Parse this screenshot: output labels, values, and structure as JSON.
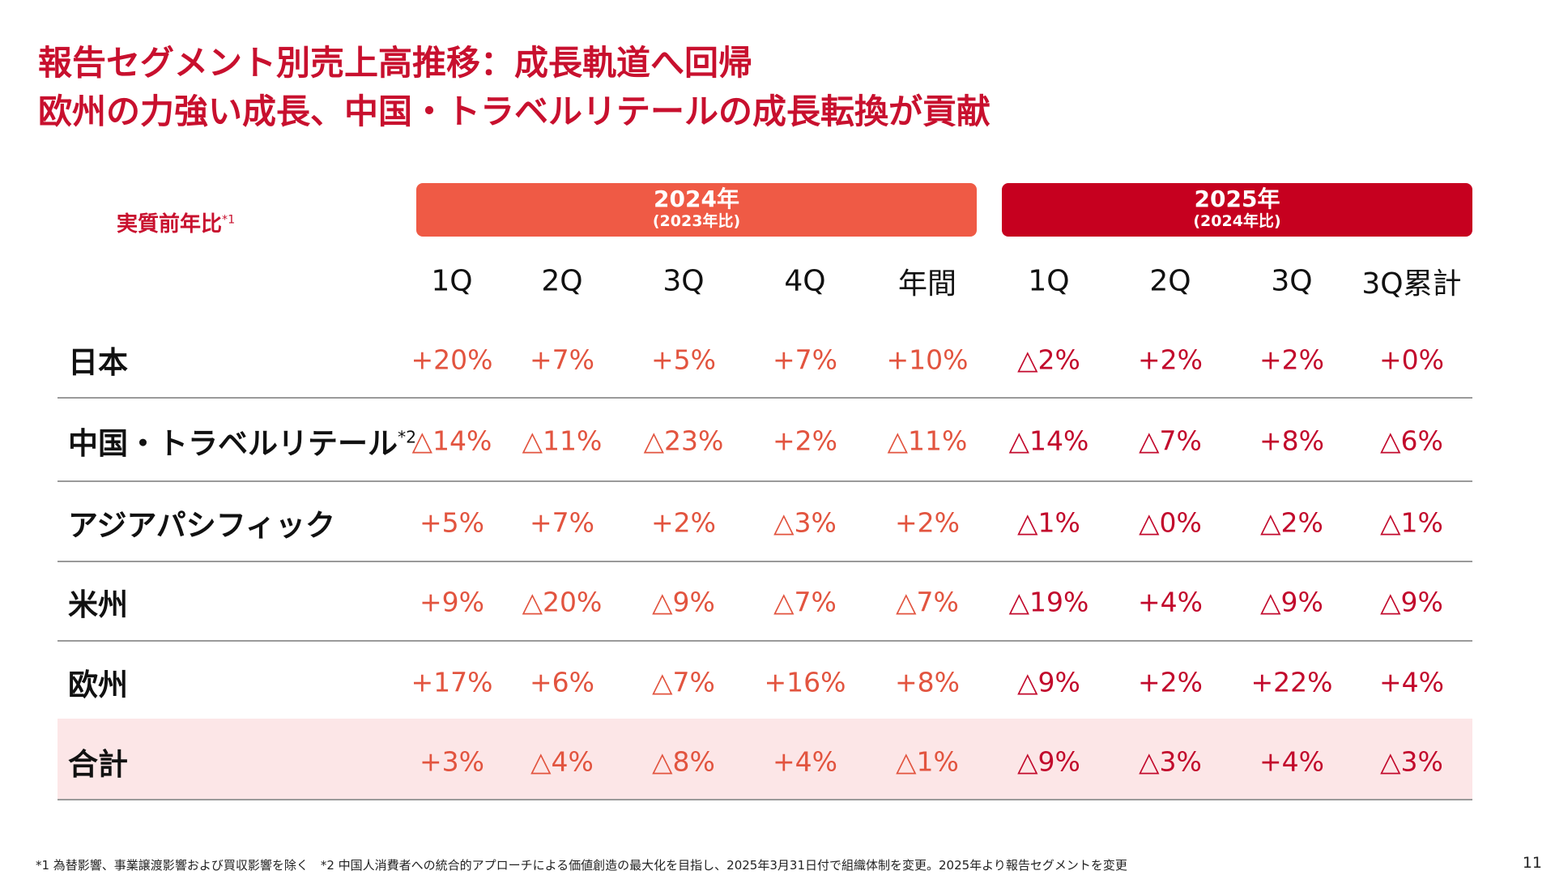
{
  "title": [
    "報告セグメント別売上高推移：成長軌道へ回帰",
    "欧州の力強い成長、中国・トラベルリテールの成長転換が貢献"
  ],
  "table": {
    "corner": {
      "label": "実質前年比",
      "note": "*1"
    },
    "groups": [
      {
        "label": "2024年",
        "sub": "(2023年比)",
        "span": 5,
        "color": "#ef5a45",
        "text_color": "#e2543f"
      },
      {
        "label": "2025年",
        "sub": "(2024年比)",
        "span": 4,
        "color": "#c6001f",
        "text_color": "#c20a2c"
      }
    ],
    "columns": [
      "1Q",
      "2Q",
      "3Q",
      "4Q",
      "年間",
      "1Q",
      "2Q",
      "3Q",
      "3Q累計"
    ],
    "rows": [
      {
        "label": "日本",
        "note": null,
        "cells": [
          "+20%",
          "+7%",
          "+5%",
          "+7%",
          "+10%",
          "△2%",
          "+2%",
          "+2%",
          "+0%"
        ]
      },
      {
        "label": "中国・トラベルリテール",
        "note": "*2",
        "cells": [
          "△14%",
          "△11%",
          "△23%",
          "+2%",
          "△11%",
          "△14%",
          "△7%",
          "+8%",
          "△6%"
        ]
      },
      {
        "label": "アジアパシフィック",
        "note": null,
        "cells": [
          "+5%",
          "+7%",
          "+2%",
          "△3%",
          "+2%",
          "△1%",
          "△0%",
          "△2%",
          "△1%"
        ]
      },
      {
        "label": "米州",
        "note": null,
        "cells": [
          "+9%",
          "△20%",
          "△9%",
          "△7%",
          "△7%",
          "△19%",
          "+4%",
          "△9%",
          "△9%"
        ]
      },
      {
        "label": "欧州",
        "note": null,
        "cells": [
          "+17%",
          "+6%",
          "△7%",
          "+16%",
          "+8%",
          "△9%",
          "+2%",
          "+22%",
          "+4%"
        ]
      },
      {
        "label": "合計",
        "note": null,
        "cells": [
          "+3%",
          "△4%",
          "△8%",
          "+4%",
          "△1%",
          "△9%",
          "△3%",
          "+4%",
          "△3%"
        ]
      }
    ]
  },
  "footnote": "*1 為替影響、事業譲渡影響および買収影響を除く　*2 中国人消費者への統合的アプローチによる価値創造の最大化を目指し、2025年3月31日付で組織体制を変更。2025年より報告セグメントを変更",
  "page_number": "11"
}
